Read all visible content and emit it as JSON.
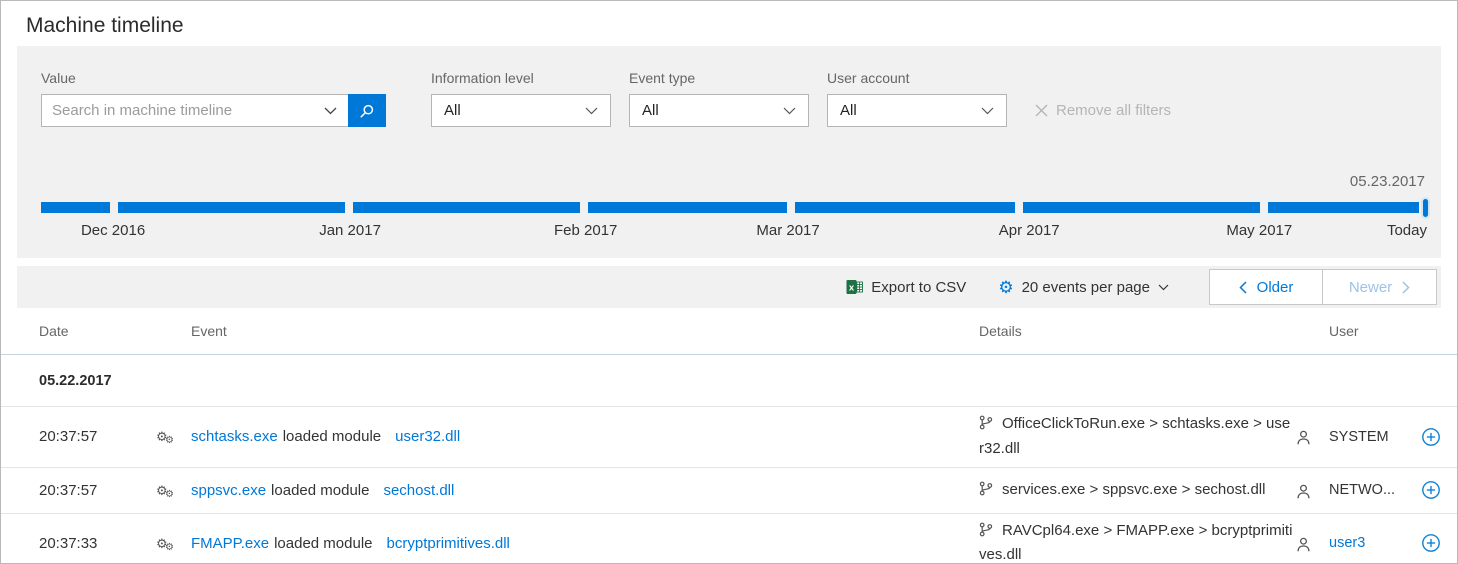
{
  "page": {
    "title": "Machine timeline"
  },
  "colors": {
    "accent_blue": "#0078d7",
    "disabled_blue": "#9dc3e6",
    "panel_gray": "#f1f1f1",
    "excel_green": "#1e7145",
    "muted_text": "#666666",
    "faint_text": "#b5b5b5"
  },
  "filters": {
    "value_label": "Value",
    "search_placeholder": "Search in machine timeline",
    "search_value": "",
    "dropdowns": [
      {
        "label": "Information level",
        "value": "All"
      },
      {
        "label": "Event type",
        "value": "All"
      },
      {
        "label": "User account",
        "value": "All"
      }
    ],
    "remove_all_label": "Remove all filters"
  },
  "timeline": {
    "end_date_label": "05.23.2017",
    "segments_pct": [
      5.0,
      16.4,
      16.4,
      14.4,
      15.9,
      17.1,
      10.9
    ],
    "labels": [
      {
        "text": "Dec 2016",
        "pos_pct": 5.2
      },
      {
        "text": "Jan 2017",
        "pos_pct": 22.3
      },
      {
        "text": "Feb 2017",
        "pos_pct": 39.3
      },
      {
        "text": "Mar 2017",
        "pos_pct": 53.9
      },
      {
        "text": "Apr 2017",
        "pos_pct": 71.3
      },
      {
        "text": "May 2017",
        "pos_pct": 87.9
      },
      {
        "text": "Today",
        "pos_pct": "right"
      }
    ]
  },
  "toolbar": {
    "export_label": "Export to CSV",
    "per_page_label": "20 events per page",
    "older_label": "Older",
    "newer_label": "Newer"
  },
  "table": {
    "columns": {
      "date": "Date",
      "event": "Event",
      "details": "Details",
      "user": "User"
    },
    "group_date": "05.22.2017",
    "rows": [
      {
        "time": "20:37:57",
        "process": "schtasks.exe",
        "action": "loaded module",
        "module": "user32.dll",
        "details": "OfficeClickToRun.exe > schtasks.exe > user32.dll",
        "user": "SYSTEM",
        "user_is_link": false
      },
      {
        "time": "20:37:57",
        "process": "sppsvc.exe",
        "action": "loaded module",
        "module": "sechost.dll",
        "details": "services.exe > sppsvc.exe > sechost.dll",
        "user": "NETWO...",
        "user_is_link": false
      },
      {
        "time": "20:37:33",
        "process": "FMAPP.exe",
        "action": "loaded module",
        "module": "bcryptprimitives.dll",
        "details": "RAVCpl64.exe > FMAPP.exe > bcryptprimitives.dll",
        "user": "user3",
        "user_is_link": true
      }
    ]
  }
}
